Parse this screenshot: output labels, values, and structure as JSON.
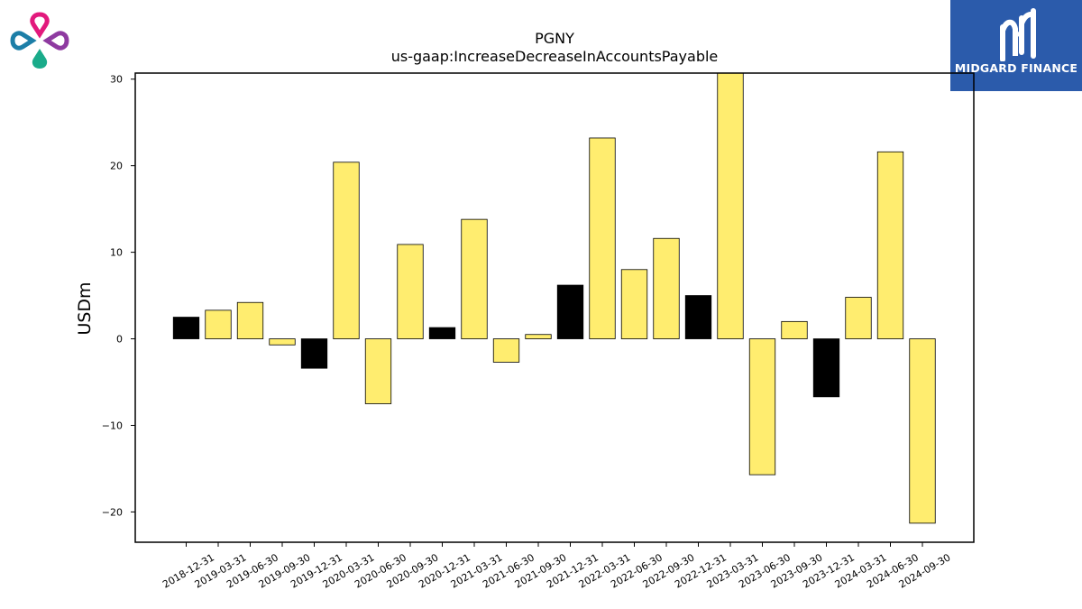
{
  "brand": {
    "right_logo_text": "MIDGARD FINANCE"
  },
  "colors": {
    "positive": "#ffed6f",
    "highlight": "#000000",
    "background": "#ffffff",
    "brand_blue": "#2b5bab"
  },
  "chart_data": {
    "type": "bar",
    "title": "PGNY",
    "subtitle": "us-gaap:IncreaseDecreaseInAccountsPayable",
    "xlabel": "",
    "ylabel": "USDm",
    "ylim": [
      -23.5,
      30.7
    ],
    "yticks": [
      -20,
      -10,
      0,
      10,
      20,
      30
    ],
    "ytick_labels": [
      "−20",
      "−10",
      "0",
      "10",
      "20",
      "30"
    ],
    "grid": false,
    "categories": [
      "2018-12-31",
      "2019-03-31",
      "2019-06-30",
      "2019-09-30",
      "2019-12-31",
      "2020-03-31",
      "2020-06-30",
      "2020-09-30",
      "2020-12-31",
      "2021-03-31",
      "2021-06-30",
      "2021-09-30",
      "2021-12-31",
      "2022-03-31",
      "2022-06-30",
      "2022-09-30",
      "2022-12-31",
      "2023-03-31",
      "2023-06-30",
      "2023-09-30",
      "2023-12-31",
      "2024-03-31",
      "2024-06-30",
      "2024-09-30"
    ],
    "values": [
      2.5,
      3.3,
      4.2,
      -0.7,
      -3.4,
      20.4,
      -7.5,
      10.9,
      1.3,
      13.8,
      -2.7,
      0.5,
      6.2,
      23.2,
      8.0,
      11.6,
      5.0,
      31.0,
      -15.7,
      2.0,
      -6.7,
      4.8,
      21.6,
      -21.3
    ],
    "bar_colors": [
      "#000000",
      "#ffed6f",
      "#ffed6f",
      "#ffed6f",
      "#000000",
      "#ffed6f",
      "#ffed6f",
      "#ffed6f",
      "#000000",
      "#ffed6f",
      "#ffed6f",
      "#ffed6f",
      "#000000",
      "#ffed6f",
      "#ffed6f",
      "#ffed6f",
      "#000000",
      "#ffed6f",
      "#ffed6f",
      "#ffed6f",
      "#000000",
      "#ffed6f",
      "#ffed6f",
      "#ffed6f"
    ]
  }
}
